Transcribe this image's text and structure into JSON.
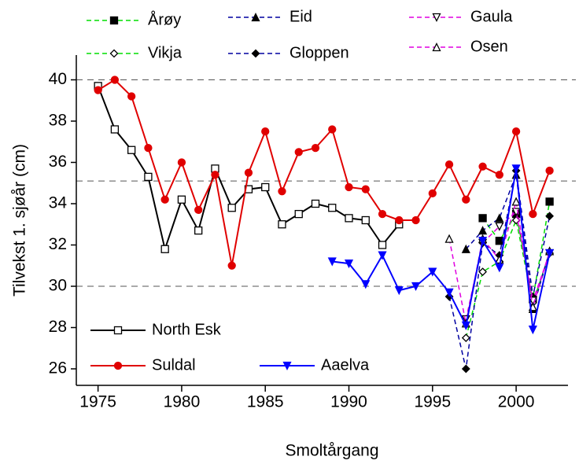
{
  "chart_data": {
    "type": "line",
    "x_label": "Smoltårgang",
    "y_label": "Tilvekst 1. sjøår (cm)",
    "xlim": [
      1973.7,
      2003.1
    ],
    "ylim": [
      25.2,
      41.2
    ],
    "xticks": [
      1975,
      1980,
      1985,
      1990,
      1995,
      2000
    ],
    "yticks": [
      26,
      28,
      30,
      32,
      34,
      36,
      38,
      40
    ],
    "reference_lines": [
      40,
      35.1,
      30
    ],
    "series": [
      {
        "name": "Årøy",
        "color": "#00dd00",
        "marker": "square",
        "filled": true,
        "dashed": true,
        "x": [
          1998,
          1999,
          2000,
          2001,
          2002
        ],
        "values": [
          33.3,
          32.2,
          33.5,
          29.4,
          34.1
        ]
      },
      {
        "name": "Vikja",
        "color": "#00dd00",
        "marker": "diamond",
        "filled": false,
        "dashed": true,
        "x": [
          1997,
          1998,
          1999,
          2000,
          2001,
          2002
        ],
        "values": [
          27.5,
          30.7,
          31.2,
          33.2,
          29.2,
          31.6
        ]
      },
      {
        "name": "Eid",
        "color": "#0000a0",
        "marker": "triangle-up",
        "filled": true,
        "dashed": true,
        "x": [
          1997,
          1998,
          1999,
          2000,
          2001,
          2002
        ],
        "values": [
          31.8,
          32.7,
          33.3,
          35.4,
          28.9,
          31.7
        ]
      },
      {
        "name": "Gloppen",
        "color": "#0000a0",
        "marker": "diamond",
        "filled": true,
        "dashed": true,
        "x": [
          1996,
          1997,
          1998,
          1999,
          2000,
          2001,
          2002
        ],
        "values": [
          29.5,
          26.0,
          32.1,
          31.5,
          35.6,
          29.5,
          33.4
        ]
      },
      {
        "name": "Gaula",
        "color": "#e000e0",
        "marker": "triangle-down",
        "filled": false,
        "dashed": true,
        "x": [
          1997,
          1998,
          1999,
          2000,
          2001,
          2002
        ],
        "values": [
          28.4,
          32.1,
          32.9,
          33.6,
          29.3,
          31.6
        ]
      },
      {
        "name": "Osen",
        "color": "#e000e0",
        "marker": "triangle-up",
        "filled": false,
        "dashed": true,
        "x": [
          1996,
          1997,
          1998,
          1999,
          2000,
          2001,
          2002
        ],
        "values": [
          32.3,
          28.2,
          32.3,
          31.3,
          34.1,
          29.0,
          31.7
        ]
      },
      {
        "name": "North Esk",
        "color": "#000000",
        "marker": "square",
        "filled": false,
        "dashed": false,
        "x": [
          1975,
          1976,
          1977,
          1978,
          1979,
          1980,
          1981,
          1982,
          1983,
          1984,
          1985,
          1986,
          1987,
          1988,
          1989,
          1990,
          1991,
          1992,
          1993
        ],
        "values": [
          39.7,
          37.6,
          36.6,
          35.3,
          31.8,
          34.2,
          32.7,
          35.7,
          33.8,
          34.7,
          34.8,
          33.0,
          33.5,
          34.0,
          33.8,
          33.3,
          33.2,
          32.0,
          33.0
        ]
      },
      {
        "name": "Suldal",
        "color": "#e00000",
        "marker": "circle",
        "filled": true,
        "dashed": false,
        "x": [
          1975,
          1976,
          1977,
          1978,
          1979,
          1980,
          1981,
          1982,
          1983,
          1984,
          1985,
          1986,
          1987,
          1988,
          1989,
          1990,
          1991,
          1992,
          1993,
          1994,
          1995,
          1996,
          1997,
          1998,
          1999,
          2000,
          2001,
          2002
        ],
        "values": [
          39.5,
          40.0,
          39.2,
          36.7,
          34.2,
          36.0,
          33.7,
          35.4,
          31.0,
          35.5,
          37.5,
          34.6,
          36.5,
          36.7,
          37.6,
          34.8,
          34.7,
          33.5,
          33.2,
          33.2,
          34.5,
          35.9,
          34.2,
          35.8,
          35.4,
          37.5,
          33.5,
          35.6
        ]
      },
      {
        "name": "Aaelva",
        "color": "#0000ff",
        "marker": "triangle-down",
        "filled": true,
        "dashed": false,
        "x": [
          1989,
          1990,
          1991,
          1992,
          1993,
          1994,
          1995,
          1996,
          1997,
          1998,
          1999,
          2000,
          2001,
          2002
        ],
        "values": [
          31.2,
          31.1,
          30.1,
          31.5,
          29.8,
          30.0,
          30.7,
          29.7,
          28.1,
          32.2,
          30.9,
          35.7,
          27.9,
          31.6
        ]
      }
    ]
  }
}
